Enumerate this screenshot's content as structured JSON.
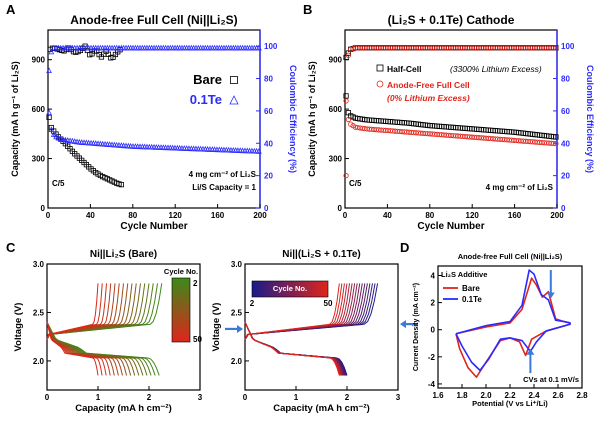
{
  "colors": {
    "black": "#000000",
    "blue": "#2b2bff",
    "red": "#e0251b",
    "green": "#3c8a1a",
    "darkred": "#c01010",
    "navy": "#1a1a8a",
    "arrow": "#3a7ad8"
  },
  "chart_data": [
    {
      "panel": "A",
      "type": "scatter",
      "title": "Anode-free Full Cell (Ni||Li₂S)",
      "xlabel": "Cycle Number",
      "ylabel": "Capacity (mA h g⁻¹ of Li₂S)",
      "y2label": "Coulombic Efficiency (%)",
      "xlim": [
        0,
        200
      ],
      "ylim": [
        0,
        1080
      ],
      "y2lim": [
        0,
        110
      ],
      "xticks": [
        0,
        40,
        80,
        120,
        160,
        200
      ],
      "yticks": [
        0,
        300,
        600,
        900
      ],
      "y2ticks": [
        0,
        20,
        40,
        60,
        80,
        100
      ],
      "legend": [
        {
          "name": "Bare",
          "marker": "square",
          "color": "#000000"
        },
        {
          "name": "0.1Te",
          "marker": "triangle",
          "color": "#2b2bff"
        }
      ],
      "annotations": [
        "C/5",
        "4 mg cm⁻² of Li₂S",
        "Li/S Capacity = 1"
      ],
      "series": [
        {
          "name": "Bare capacity",
          "axis": "left",
          "x": [
            1,
            2,
            3,
            5,
            8,
            10,
            15,
            20,
            25,
            30,
            35,
            40,
            45,
            50,
            55,
            60,
            65,
            70
          ],
          "y": [
            550,
            520,
            490,
            470,
            445,
            430,
            400,
            365,
            330,
            300,
            270,
            240,
            215,
            195,
            180,
            165,
            150,
            140
          ]
        },
        {
          "name": "0.1Te capacity",
          "axis": "left",
          "x": [
            1,
            2,
            3,
            5,
            8,
            10,
            15,
            20,
            30,
            40,
            60,
            80,
            100,
            120,
            140,
            160,
            180,
            200
          ],
          "y": [
            580,
            520,
            480,
            450,
            430,
            425,
            415,
            410,
            400,
            395,
            385,
            375,
            370,
            365,
            360,
            355,
            350,
            345
          ]
        },
        {
          "name": "Bare CE",
          "axis": "right",
          "x": [
            2,
            5,
            10,
            15,
            20,
            25,
            30,
            35,
            40,
            45,
            50,
            55,
            60,
            65,
            70
          ],
          "y": [
            98,
            99,
            98,
            97,
            99,
            96,
            97,
            100,
            94,
            98,
            93,
            97,
            92,
            96,
            99
          ]
        },
        {
          "name": "0.1Te CE",
          "axis": "right",
          "x": [
            1,
            2,
            5,
            10,
            20,
            40,
            60,
            80,
            100,
            120,
            140,
            160,
            180,
            200
          ],
          "y": [
            85,
            95,
            99,
            99,
            99,
            99,
            99,
            99,
            99,
            99,
            99,
            99,
            99,
            99
          ]
        }
      ]
    },
    {
      "panel": "B",
      "type": "scatter",
      "title": "(Li₂S + 0.1Te) Cathode",
      "xlabel": "Cycle Number",
      "ylabel": "Capacity (mA h g⁻¹ of Li₂S)",
      "y2label": "Coulombic Efficiency (%)",
      "xlim": [
        0,
        200
      ],
      "ylim": [
        0,
        1080
      ],
      "y2lim": [
        0,
        110
      ],
      "xticks": [
        0,
        40,
        80,
        120,
        160,
        200
      ],
      "yticks": [
        0,
        300,
        600,
        900
      ],
      "y2ticks": [
        0,
        20,
        40,
        60,
        80,
        100
      ],
      "legend": [
        {
          "name": "Half-Cell",
          "note": "(3300% Lithium Excess)",
          "marker": "square",
          "color": "#000000"
        },
        {
          "name": "Anode-Free Full Cell",
          "note": "(0% Lithium Excess)",
          "marker": "circle",
          "color": "#e0251b"
        }
      ],
      "annotations": [
        "C/5",
        "4 mg cm⁻² of Li₂S"
      ],
      "series": [
        {
          "name": "Half-Cell capacity",
          "axis": "left",
          "x": [
            1,
            2,
            3,
            5,
            10,
            20,
            40,
            60,
            80,
            100,
            120,
            140,
            160,
            180,
            200
          ],
          "y": [
            680,
            620,
            580,
            560,
            545,
            535,
            525,
            515,
            500,
            490,
            480,
            470,
            460,
            445,
            430
          ]
        },
        {
          "name": "Anode-Free capacity",
          "axis": "left",
          "x": [
            1,
            2,
            3,
            5,
            10,
            20,
            40,
            60,
            80,
            100,
            120,
            140,
            160,
            180,
            200
          ],
          "y": [
            650,
            580,
            540,
            510,
            490,
            480,
            470,
            460,
            450,
            440,
            430,
            420,
            410,
            400,
            390
          ]
        },
        {
          "name": "Half-Cell CE",
          "axis": "right",
          "x": [
            1,
            5,
            10,
            20,
            40,
            60,
            80,
            100,
            120,
            140,
            160,
            180,
            200
          ],
          "y": [
            93,
            98,
            99,
            99,
            99,
            99,
            99,
            99,
            99,
            99,
            99,
            99,
            99
          ]
        },
        {
          "name": "Anode-Free CE",
          "axis": "right",
          "x": [
            1,
            2,
            5,
            10,
            20,
            40,
            60,
            80,
            100,
            120,
            140,
            160,
            180,
            200
          ],
          "y": [
            20,
            92,
            98,
            99,
            99,
            99,
            99,
            99,
            99,
            99,
            99,
            99,
            99,
            99
          ]
        }
      ]
    },
    {
      "panel": "C-left",
      "type": "line",
      "title": "Ni||Li₂S (Bare)",
      "xlabel": "Capacity (mA h cm⁻²)",
      "ylabel": "Voltage (V)",
      "xlim": [
        0,
        3
      ],
      "ylim": [
        1.7,
        3.0
      ],
      "xticks": [
        0,
        1,
        2,
        3
      ],
      "yticks": [
        2.0,
        2.5,
        3.0
      ],
      "colorbar": {
        "title": "Cycle No.",
        "min": 2,
        "max": 50,
        "from": "#3c8a1a",
        "to": "#e0251b"
      },
      "first_cycle": {
        "charge_capacity": 2.25,
        "discharge_capacity": 2.2
      },
      "last_cycle": {
        "charge_capacity": 1.0,
        "discharge_capacity": 1.0
      }
    },
    {
      "panel": "C-right",
      "type": "line",
      "title": "Ni||(Li₂S + 0.1Te)",
      "xlabel": "Capacity (mA h cm⁻²)",
      "ylabel": "Voltage (V)",
      "xlim": [
        0,
        3
      ],
      "ylim": [
        1.7,
        3.0
      ],
      "xticks": [
        0,
        1,
        2,
        3
      ],
      "yticks": [
        2.0,
        2.5,
        3.0
      ],
      "colorbar": {
        "title": "Cycle No.",
        "min": 2,
        "max": 50,
        "from": "#1a1a8a",
        "to": "#e0251b"
      },
      "first_cycle": {
        "charge_capacity": 2.6,
        "discharge_capacity": 2.0
      },
      "last_cycle": {
        "charge_capacity": 1.85,
        "discharge_capacity": 1.85
      }
    },
    {
      "panel": "D",
      "type": "line",
      "title": "Anode-free Full Cell (Ni||Li₂S)",
      "xlabel": "Potential (V vs Li⁺/Li)",
      "ylabel": "Current Density (mA cm⁻²)",
      "xlim": [
        1.6,
        2.8
      ],
      "ylim": [
        -4.3,
        4.7
      ],
      "xticks": [
        1.6,
        1.8,
        2.0,
        2.2,
        2.4,
        2.6,
        2.8
      ],
      "yticks": [
        -4,
        -2,
        0,
        2,
        4
      ],
      "legend_title": "Li₂S Additive",
      "annotations": [
        "CVs at 0.1 mV/s"
      ],
      "series": [
        {
          "name": "Bare",
          "color": "#e0251b",
          "anodic": {
            "x": [
              1.75,
              2.0,
              2.2,
              2.3,
              2.38,
              2.42,
              2.47,
              2.52,
              2.58,
              2.65,
              2.7
            ],
            "y": [
              -0.3,
              0.2,
              0.5,
              1.5,
              3.8,
              3.3,
              2.4,
              2.8,
              0.8,
              0.6,
              0.5
            ]
          },
          "cathodic": {
            "x": [
              2.7,
              2.5,
              2.38,
              2.33,
              2.28,
              2.2,
              2.12,
              2.0,
              1.92,
              1.85,
              1.78,
              1.75
            ],
            "y": [
              0.4,
              -0.1,
              -0.7,
              -1.9,
              -0.9,
              -0.6,
              -0.8,
              -2.4,
              -3.5,
              -2.8,
              -1.4,
              -0.3
            ]
          }
        },
        {
          "name": "0.1Te",
          "color": "#2b2bff",
          "anodic": {
            "x": [
              1.75,
              2.0,
              2.2,
              2.3,
              2.36,
              2.4,
              2.46,
              2.52,
              2.58,
              2.65,
              2.7
            ],
            "y": [
              -0.3,
              0.3,
              0.6,
              1.8,
              4.4,
              4.1,
              2.6,
              2.2,
              0.7,
              0.6,
              0.5
            ]
          },
          "cathodic": {
            "x": [
              2.7,
              2.5,
              2.42,
              2.37,
              2.3,
              2.2,
              2.12,
              2.02,
              1.95,
              1.88,
              1.8,
              1.75
            ],
            "y": [
              0.4,
              -0.1,
              -0.9,
              -1.6,
              -0.8,
              -0.6,
              -0.7,
              -2.2,
              -3.0,
              -2.4,
              -1.2,
              -0.3
            ]
          }
        }
      ]
    }
  ]
}
